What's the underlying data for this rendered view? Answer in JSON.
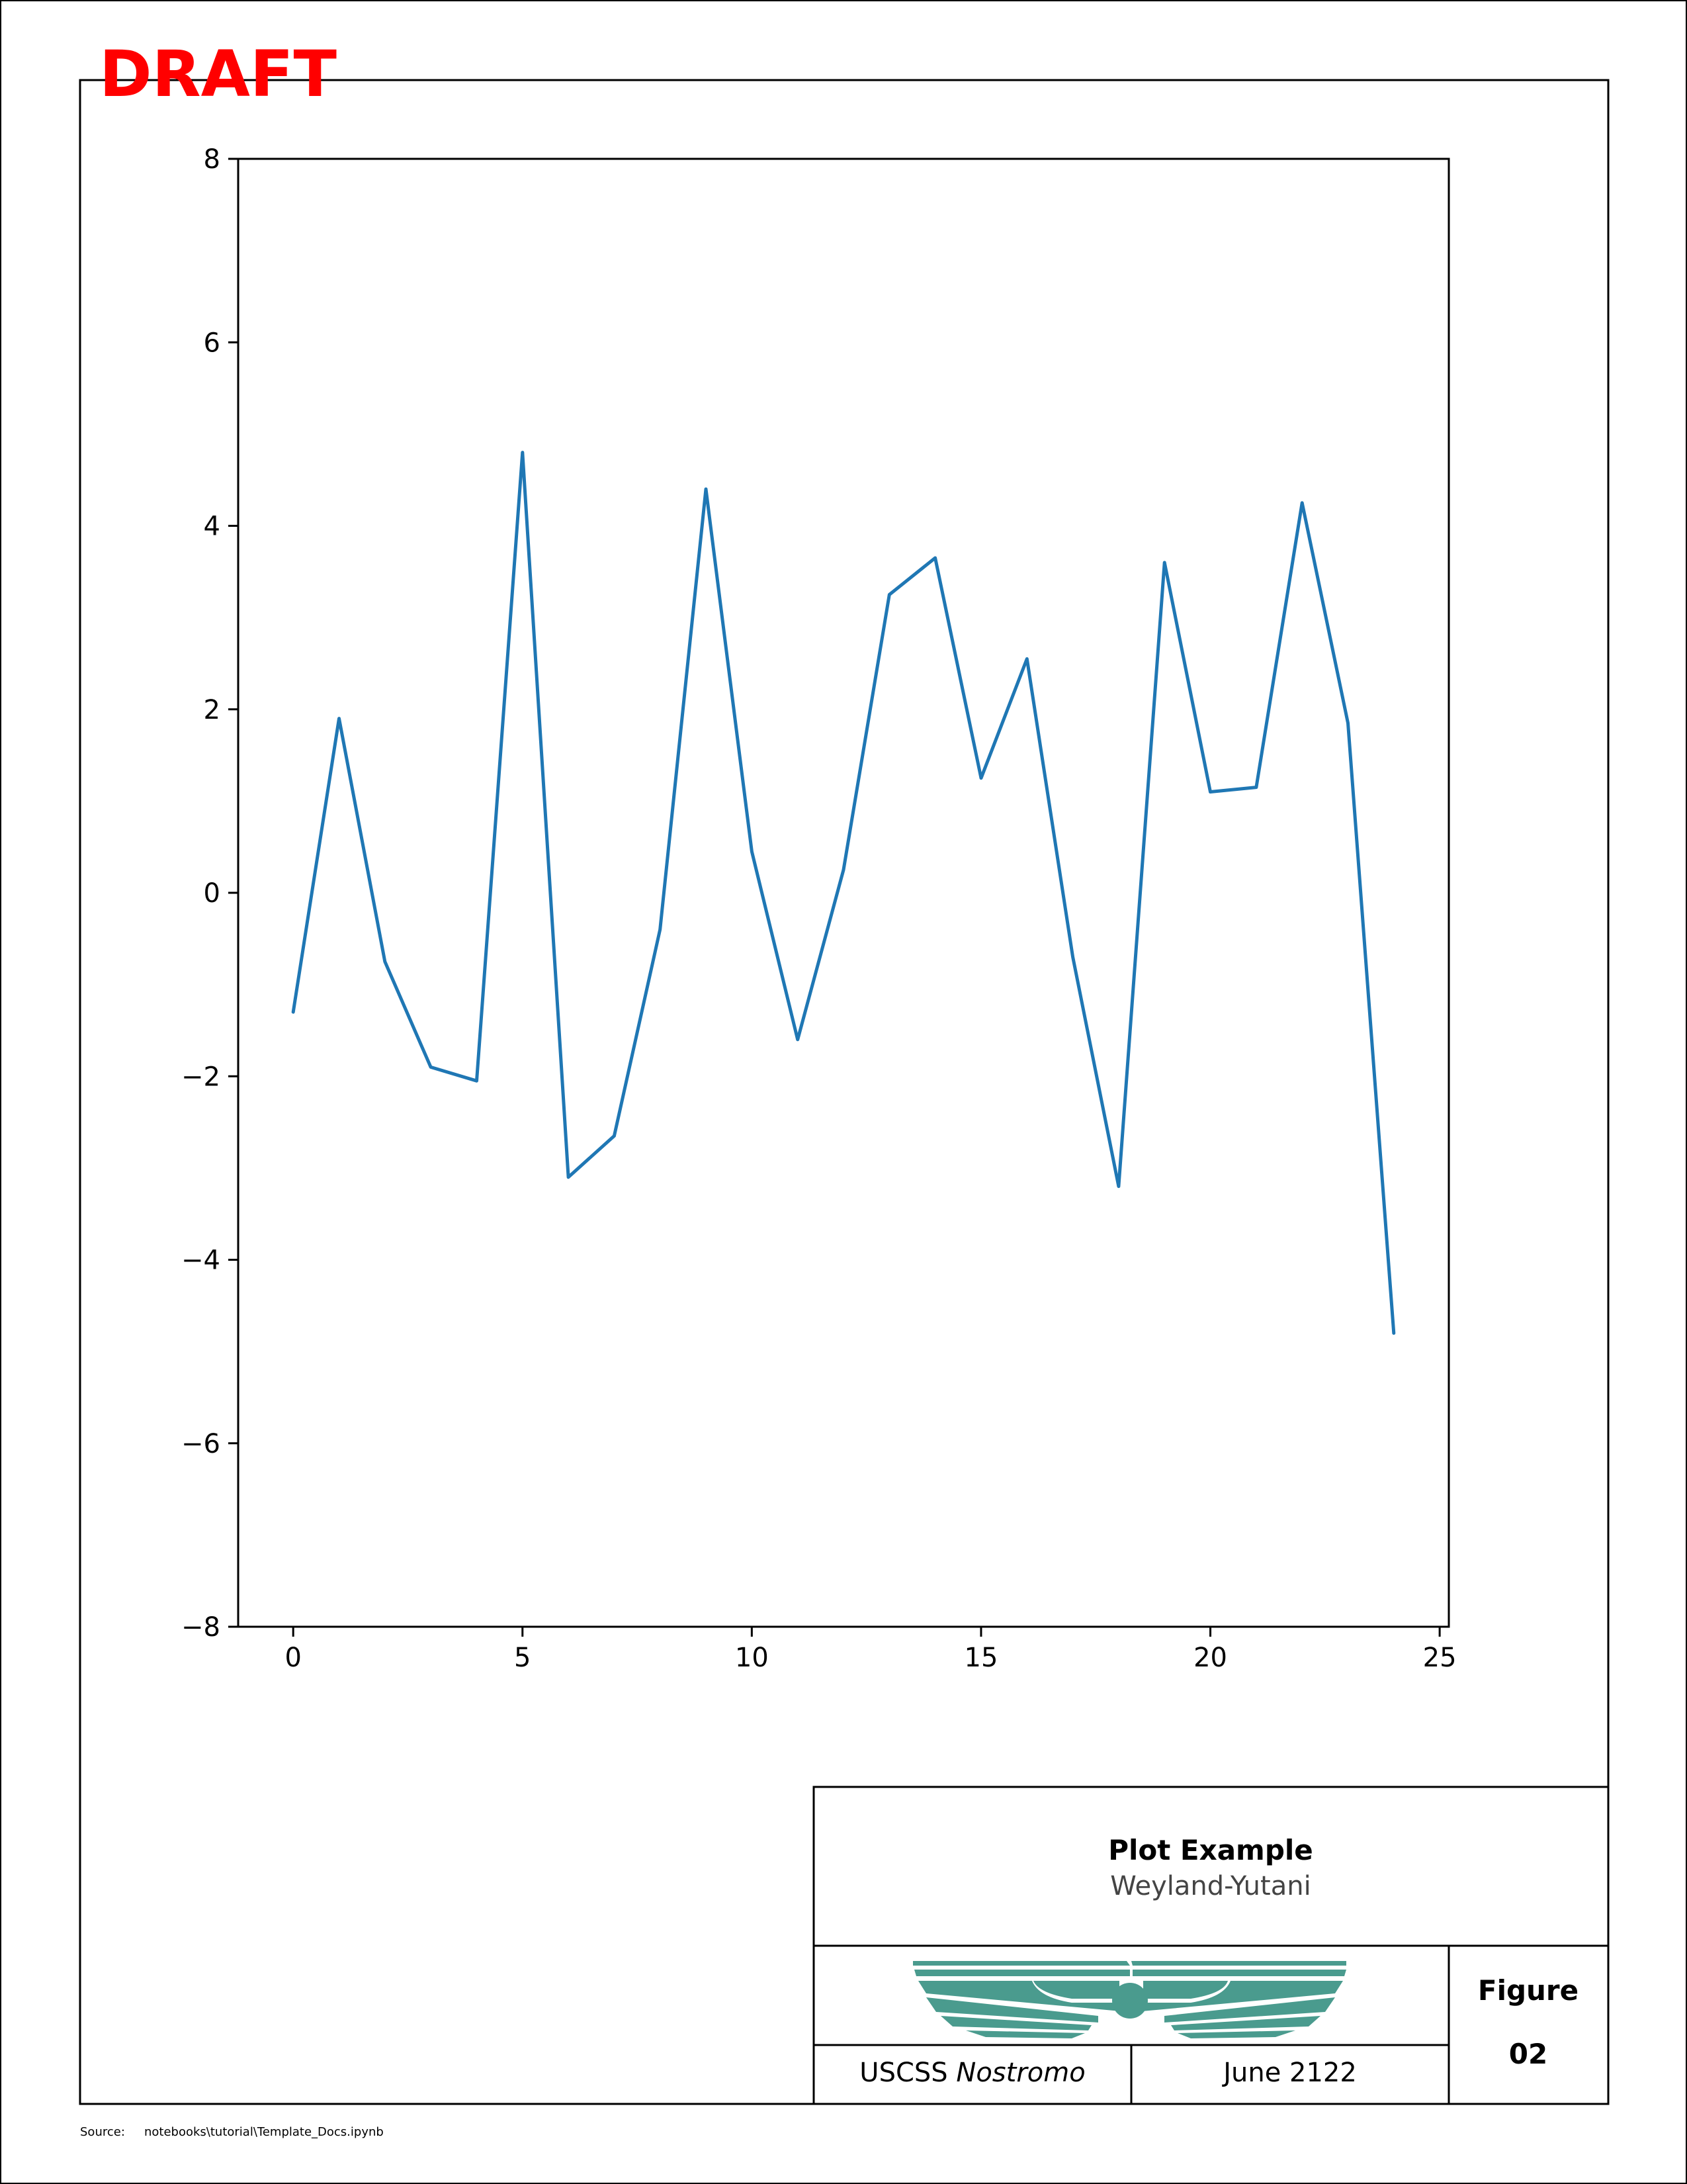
{
  "watermark": "DRAFT",
  "source": {
    "label": "Source:",
    "path": "notebooks\\tutorial\\Template_Docs.ipynb"
  },
  "title_block": {
    "title": "Plot Example",
    "company": "Weyland-Yutani",
    "project_prefix": "USCSS",
    "project_name": "Nostromo",
    "date": "June 2122",
    "figure_label": "Figure",
    "figure_number": "02",
    "logo_icon": "weyland-yutani-wings-logo-icon",
    "logo_color": "#4a9b8e"
  },
  "colors": {
    "watermark": "#ff0000",
    "line": "#1f77b4",
    "company_text": "#444444"
  },
  "chart_data": {
    "type": "line",
    "title": "",
    "xlabel": "",
    "ylabel": "",
    "xlim": [
      -1.2,
      25.2
    ],
    "ylim": [
      -8,
      8
    ],
    "xticks": [
      0,
      5,
      10,
      15,
      20,
      25
    ],
    "yticks": [
      -8,
      -6,
      -4,
      -2,
      0,
      2,
      4,
      6,
      8
    ],
    "grid": false,
    "x": [
      0,
      1,
      2,
      3,
      4,
      5,
      6,
      7,
      8,
      9,
      10,
      11,
      12,
      13,
      14,
      15,
      16,
      17,
      18,
      19,
      20,
      21,
      22,
      23,
      24
    ],
    "series": [
      {
        "values": [
          -1.3,
          1.9,
          -0.75,
          -1.9,
          -2.05,
          4.8,
          -3.1,
          -2.65,
          -0.4,
          4.4,
          0.45,
          -1.6,
          0.25,
          3.25,
          3.65,
          1.25,
          2.55,
          -0.7,
          -3.2,
          3.6,
          1.1,
          1.15,
          4.25,
          1.85,
          -4.8
        ]
      }
    ]
  }
}
